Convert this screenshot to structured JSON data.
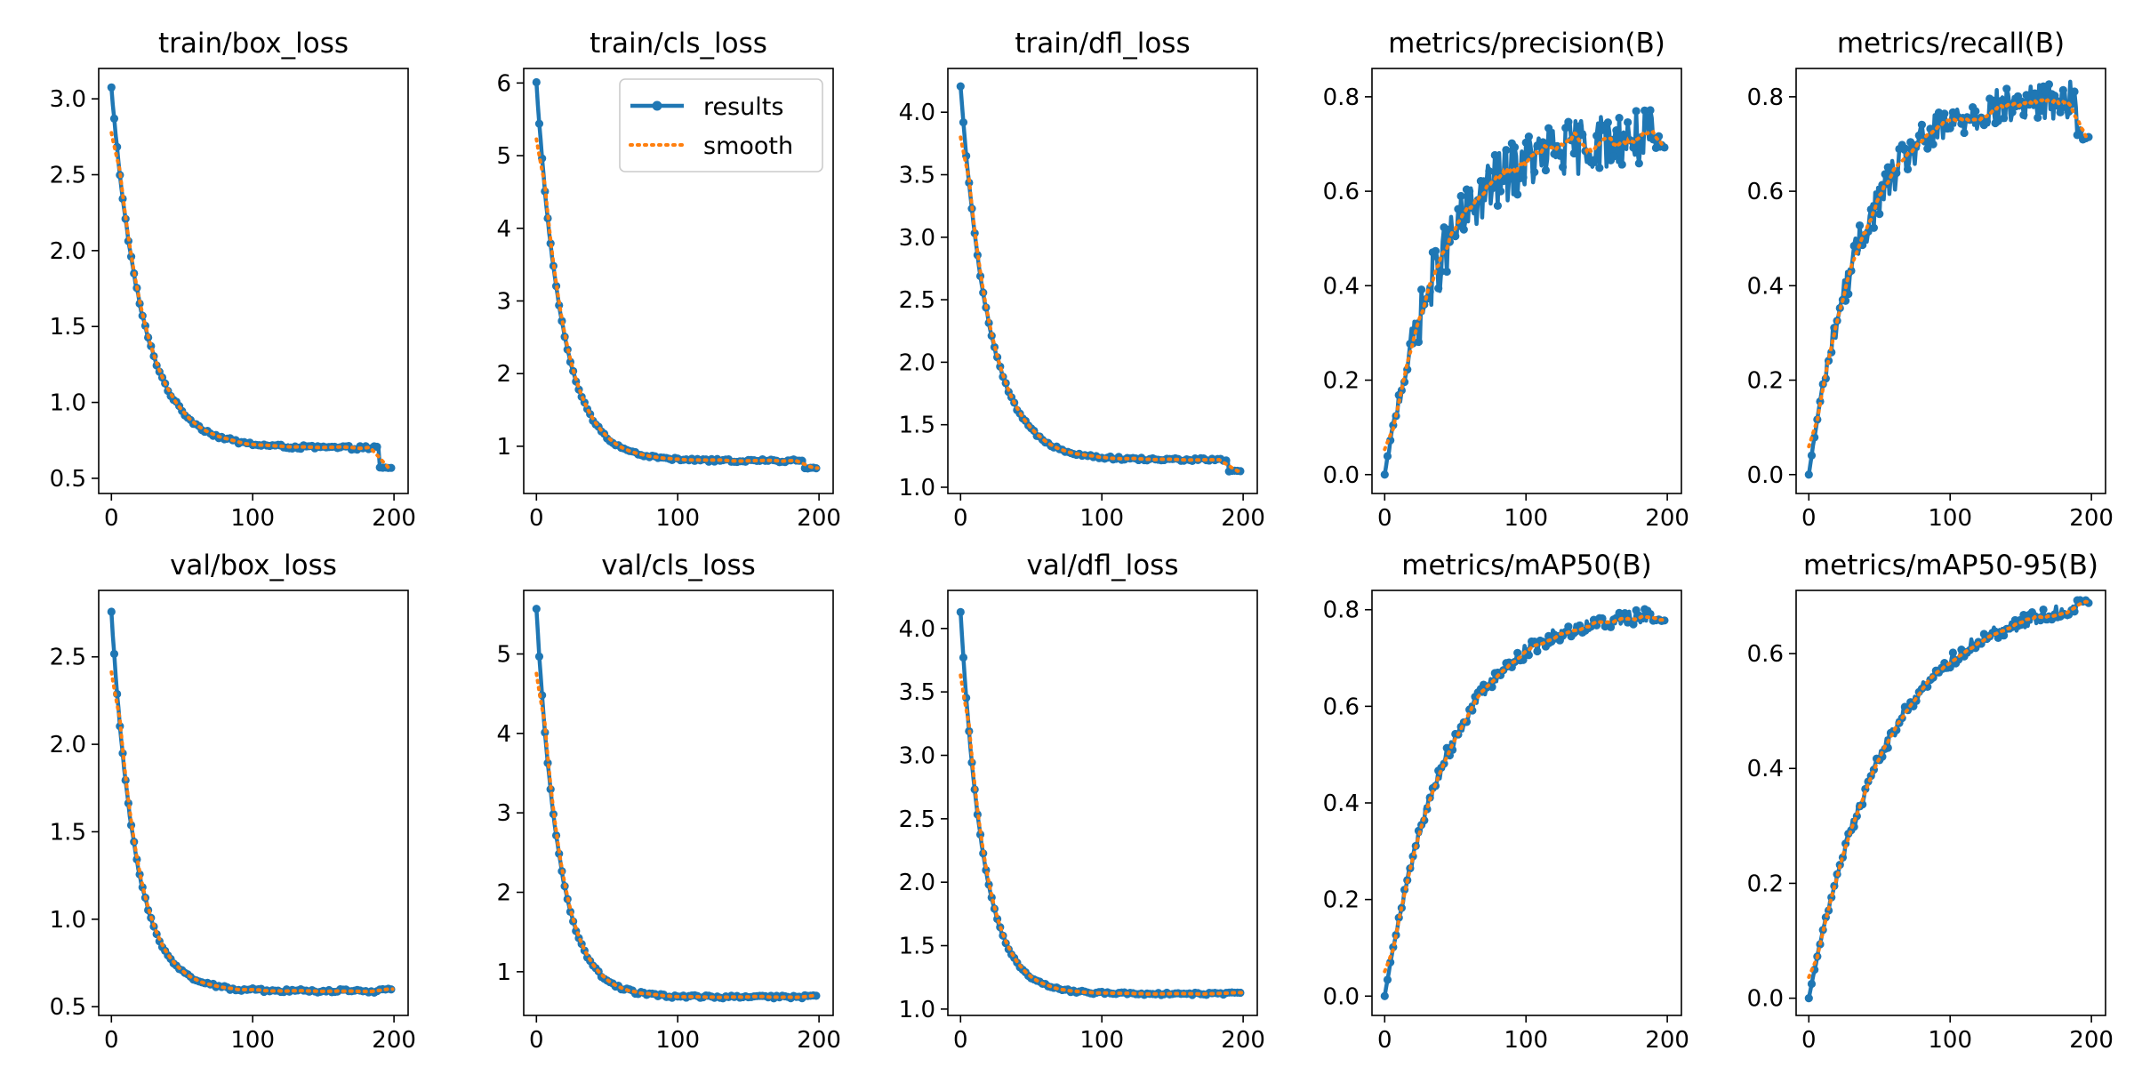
{
  "chart_data": [
    {
      "type": "line",
      "title": "train/box_loss",
      "xlabel": "",
      "ylabel": "",
      "xlim": [
        -9,
        210
      ],
      "ylim": [
        0.4,
        3.2
      ],
      "xticks": [
        0,
        100,
        200
      ],
      "yticks": [
        0.5,
        1.0,
        1.5,
        2.0,
        2.5,
        3.0
      ],
      "ytick_decimals": 1,
      "grid": false,
      "shape": "decay",
      "start": 3.07,
      "end": 0.7,
      "tau": 22,
      "noise": 0.012,
      "tail": 0.57,
      "series": [
        {
          "name": "results",
          "color": "#1f77b4"
        },
        {
          "name": "smooth",
          "color": "#ff7f0e"
        }
      ]
    },
    {
      "type": "line",
      "title": "train/cls_loss",
      "xlabel": "",
      "ylabel": "",
      "xlim": [
        -9,
        210
      ],
      "ylim": [
        0.35,
        6.2
      ],
      "xticks": [
        0,
        100,
        200
      ],
      "yticks": [
        1,
        2,
        3,
        4,
        5,
        6
      ],
      "ytick_decimals": 0,
      "grid": false,
      "shape": "decay",
      "start": 6.0,
      "end": 0.8,
      "tau": 18,
      "noise": 0.02,
      "tail": 0.7,
      "legend": {
        "entries": [
          "results",
          "smooth"
        ],
        "placement": "upper right"
      },
      "series": [
        {
          "name": "results",
          "color": "#1f77b4"
        },
        {
          "name": "smooth",
          "color": "#ff7f0e"
        }
      ]
    },
    {
      "type": "line",
      "title": "train/dfl_loss",
      "xlabel": "",
      "ylabel": "",
      "xlim": [
        -9,
        210
      ],
      "ylim": [
        0.95,
        4.35
      ],
      "xticks": [
        0,
        100,
        200
      ],
      "yticks": [
        1.0,
        1.5,
        2.0,
        2.5,
        3.0,
        3.5,
        4.0
      ],
      "ytick_decimals": 1,
      "grid": false,
      "shape": "decay",
      "start": 4.2,
      "end": 1.22,
      "tau": 20,
      "noise": 0.012,
      "tail": 1.13,
      "series": [
        {
          "name": "results",
          "color": "#1f77b4"
        },
        {
          "name": "smooth",
          "color": "#ff7f0e"
        }
      ]
    },
    {
      "type": "line",
      "title": "metrics/precision(B)",
      "xlabel": "",
      "ylabel": "",
      "xlim": [
        -9,
        210
      ],
      "ylim": [
        -0.04,
        0.86
      ],
      "xticks": [
        0,
        100,
        200
      ],
      "yticks": [
        0.0,
        0.2,
        0.4,
        0.6,
        0.8
      ],
      "ytick_decimals": 1,
      "grid": false,
      "shape": "rise",
      "start": 0.0,
      "end": 0.72,
      "tau": 40,
      "noise": 0.06,
      "tail": 0.7,
      "series": [
        {
          "name": "results",
          "color": "#1f77b4"
        },
        {
          "name": "smooth",
          "color": "#ff7f0e"
        }
      ]
    },
    {
      "type": "line",
      "title": "metrics/recall(B)",
      "xlabel": "",
      "ylabel": "",
      "xlim": [
        -9,
        210
      ],
      "ylim": [
        -0.04,
        0.86
      ],
      "xticks": [
        0,
        100,
        200
      ],
      "yticks": [
        0.0,
        0.2,
        0.4,
        0.6,
        0.8
      ],
      "ytick_decimals": 1,
      "grid": false,
      "shape": "rise",
      "start": 0.0,
      "end": 0.8,
      "tau": 38,
      "noise": 0.04,
      "tail": 0.72,
      "series": [
        {
          "name": "results",
          "color": "#1f77b4"
        },
        {
          "name": "smooth",
          "color": "#ff7f0e"
        }
      ]
    },
    {
      "type": "line",
      "title": "val/box_loss",
      "xlabel": "",
      "ylabel": "",
      "xlim": [
        -9,
        210
      ],
      "ylim": [
        0.45,
        2.88
      ],
      "xticks": [
        0,
        100,
        200
      ],
      "yticks": [
        0.5,
        1.0,
        1.5,
        2.0,
        2.5
      ],
      "ytick_decimals": 1,
      "grid": false,
      "shape": "decay",
      "start": 2.75,
      "end": 0.59,
      "tau": 17,
      "noise": 0.01,
      "tail": 0.6,
      "series": [
        {
          "name": "results",
          "color": "#1f77b4"
        },
        {
          "name": "smooth",
          "color": "#ff7f0e"
        }
      ]
    },
    {
      "type": "line",
      "title": "val/cls_loss",
      "xlabel": "",
      "ylabel": "",
      "xlim": [
        -9,
        210
      ],
      "ylim": [
        0.45,
        5.8
      ],
      "xticks": [
        0,
        100,
        200
      ],
      "yticks": [
        1,
        2,
        3,
        4,
        5
      ],
      "ytick_decimals": 0,
      "grid": false,
      "shape": "decay",
      "start": 5.55,
      "end": 0.68,
      "tau": 16,
      "noise": 0.02,
      "tail": 0.7,
      "series": [
        {
          "name": "results",
          "color": "#1f77b4"
        },
        {
          "name": "smooth",
          "color": "#ff7f0e"
        }
      ]
    },
    {
      "type": "line",
      "title": "val/dfl_loss",
      "xlabel": "",
      "ylabel": "",
      "xlim": [
        -9,
        210
      ],
      "ylim": [
        0.95,
        4.3
      ],
      "xticks": [
        0,
        100,
        200
      ],
      "yticks": [
        1.0,
        1.5,
        2.0,
        2.5,
        3.0,
        3.5,
        4.0
      ],
      "ytick_decimals": 1,
      "grid": false,
      "shape": "decay",
      "start": 4.12,
      "end": 1.12,
      "tau": 16,
      "noise": 0.01,
      "tail": 1.13,
      "series": [
        {
          "name": "results",
          "color": "#1f77b4"
        },
        {
          "name": "smooth",
          "color": "#ff7f0e"
        }
      ]
    },
    {
      "type": "line",
      "title": "metrics/mAP50(B)",
      "xlabel": "",
      "ylabel": "",
      "xlim": [
        -9,
        210
      ],
      "ylim": [
        -0.04,
        0.84
      ],
      "xticks": [
        0,
        100,
        200
      ],
      "yticks": [
        0.0,
        0.2,
        0.4,
        0.6,
        0.8
      ],
      "ytick_decimals": 1,
      "grid": false,
      "shape": "rise",
      "start": 0.0,
      "end": 0.8,
      "tau": 45,
      "noise": 0.015,
      "tail": 0.78,
      "series": [
        {
          "name": "results",
          "color": "#1f77b4"
        },
        {
          "name": "smooth",
          "color": "#ff7f0e"
        }
      ]
    },
    {
      "type": "line",
      "title": "metrics/mAP50-95(B)",
      "xlabel": "",
      "ylabel": "",
      "xlim": [
        -9,
        210
      ],
      "ylim": [
        -0.03,
        0.71
      ],
      "xticks": [
        0,
        100,
        200
      ],
      "yticks": [
        0.0,
        0.2,
        0.4,
        0.6
      ],
      "ytick_decimals": 1,
      "grid": false,
      "shape": "rise",
      "start": 0.0,
      "end": 0.7,
      "tau": 55,
      "noise": 0.012,
      "tail": 0.69,
      "series": [
        {
          "name": "results",
          "color": "#1f77b4"
        },
        {
          "name": "smooth",
          "color": "#ff7f0e"
        }
      ]
    }
  ]
}
